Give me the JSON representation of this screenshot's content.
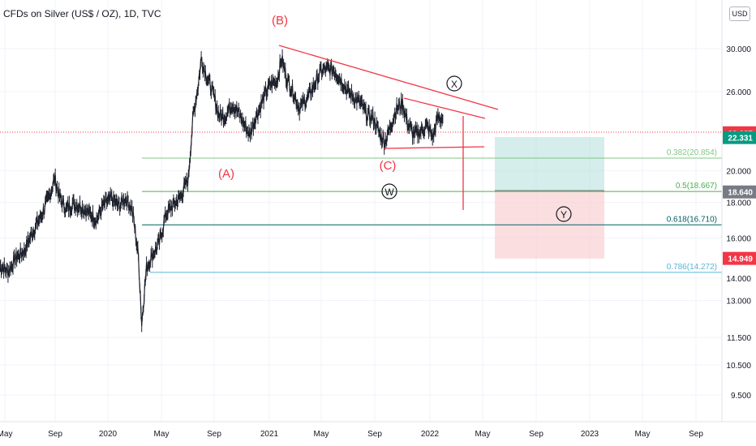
{
  "header": {
    "title": "CFDs on Silver (US$ / OZ), 1D, TVC",
    "currency": "USD"
  },
  "colors": {
    "candle": "#1e222d",
    "wave": "#f23645",
    "fib382": "#81c784",
    "fib05": "#4caf50",
    "fib618": "#006064",
    "fib786": "#5ab4d6",
    "profit": "#b2dfdb",
    "loss": "#f8c9cc",
    "last_price_bg": "#f23645",
    "grid": "#f0f3fa"
  },
  "chart_data": {
    "type": "candlestick",
    "title": "CFDs on Silver (US$ / OZ), 1D, TVC",
    "y_axis": {
      "scale": "log",
      "ticks": [
        "30.000",
        "26.000",
        "20.000",
        "18.000",
        "16.000",
        "14.000",
        "13.000",
        "11.500",
        "10.500",
        "9.500"
      ]
    },
    "x_axis": {
      "ticks": [
        "May",
        "Sep",
        "2020",
        "May",
        "Sep",
        "2021",
        "May",
        "Sep",
        "2022",
        "May",
        "Sep",
        "2023",
        "May",
        "Sep"
      ]
    },
    "price_labels": [
      {
        "value": "22.687",
        "color": "#f23645"
      },
      {
        "value": "22.331",
        "color": "#089981"
      },
      {
        "value": "18.640",
        "color": "#787b86"
      },
      {
        "value": "14.949",
        "color": "#f23645"
      }
    ],
    "fib_levels": [
      {
        "label": "0.382(20.854)",
        "price": 20.854,
        "color": "#81c784"
      },
      {
        "label": "0.5(18.667)",
        "price": 18.667,
        "color": "#4caf50"
      },
      {
        "label": "0.618(16.710)",
        "price": 16.71,
        "color": "#006064"
      },
      {
        "label": "0.786(14.272)",
        "price": 14.272,
        "color": "#5ab4d6"
      }
    ],
    "wave_labels": [
      "(B)",
      "(A)",
      "(C)",
      "X",
      "W",
      "Y"
    ],
    "series": [
      {
        "values": [
          [
            2019.33,
            14.6
          ],
          [
            2019.38,
            14.3
          ],
          [
            2019.43,
            15.0
          ],
          [
            2019.48,
            15.3
          ],
          [
            2019.53,
            16.3
          ],
          [
            2019.58,
            17.1
          ],
          [
            2019.63,
            18.2
          ],
          [
            2019.67,
            19.5
          ],
          [
            2019.7,
            18.3
          ],
          [
            2019.74,
            17.6
          ],
          [
            2019.78,
            17.9
          ],
          [
            2019.83,
            17.8
          ],
          [
            2019.88,
            17.4
          ],
          [
            2019.93,
            17.0
          ],
          [
            2019.97,
            17.8
          ],
          [
            2020.02,
            18.2
          ],
          [
            2020.07,
            17.8
          ],
          [
            2020.11,
            18.3
          ],
          [
            2020.15,
            17.6
          ],
          [
            2020.19,
            15.0
          ],
          [
            2020.21,
            12.0
          ],
          [
            2020.24,
            14.5
          ],
          [
            2020.28,
            15.2
          ],
          [
            2020.32,
            15.7
          ],
          [
            2020.36,
            17.3
          ],
          [
            2020.4,
            17.8
          ],
          [
            2020.45,
            18.3
          ],
          [
            2020.5,
            19.5
          ],
          [
            2020.53,
            24.0
          ],
          [
            2020.56,
            26.5
          ],
          [
            2020.58,
            29.0
          ],
          [
            2020.61,
            27.5
          ],
          [
            2020.65,
            26.0
          ],
          [
            2020.69,
            24.0
          ],
          [
            2020.73,
            24.0
          ],
          [
            2020.77,
            25.0
          ],
          [
            2020.8,
            24.5
          ],
          [
            2020.84,
            23.5
          ],
          [
            2020.88,
            22.5
          ],
          [
            2020.92,
            24.0
          ],
          [
            2020.96,
            25.2
          ],
          [
            2021.0,
            26.5
          ],
          [
            2021.05,
            27.0
          ],
          [
            2021.08,
            29.0
          ],
          [
            2021.11,
            27.2
          ],
          [
            2021.15,
            26.0
          ],
          [
            2021.19,
            24.6
          ],
          [
            2021.24,
            25.5
          ],
          [
            2021.28,
            26.5
          ],
          [
            2021.32,
            27.8
          ],
          [
            2021.36,
            28.0
          ],
          [
            2021.4,
            28.0
          ],
          [
            2021.45,
            27.0
          ],
          [
            2021.49,
            26.0
          ],
          [
            2021.53,
            25.5
          ],
          [
            2021.57,
            25.0
          ],
          [
            2021.61,
            24.0
          ],
          [
            2021.65,
            23.8
          ],
          [
            2021.69,
            22.5
          ],
          [
            2021.72,
            22.0
          ],
          [
            2021.75,
            23.0
          ],
          [
            2021.79,
            24.5
          ],
          [
            2021.83,
            25.0
          ],
          [
            2021.86,
            23.5
          ],
          [
            2021.9,
            22.5
          ],
          [
            2021.94,
            22.8
          ],
          [
            2021.98,
            23.2
          ],
          [
            2022.02,
            22.4
          ],
          [
            2022.05,
            23.9
          ],
          [
            2022.08,
            23.8
          ]
        ]
      }
    ]
  }
}
